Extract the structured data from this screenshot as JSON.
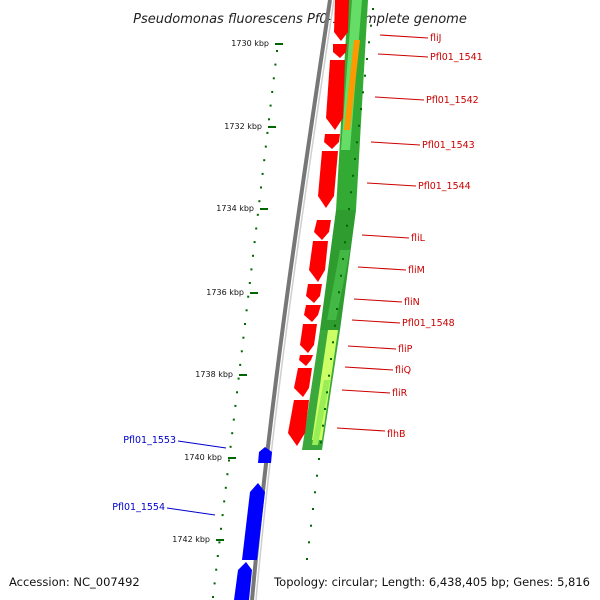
{
  "title": "Pseudomonas fluorescens Pf0-1, complete genome",
  "accession_text": "Accession: NC_007492",
  "summary_text": "Topology: circular; Length: 6,438,405 bp; Genes: 5,816",
  "colors": {
    "forward_cds": "#ff0000",
    "reverse_cds": "#0000ff",
    "forward_label": "#cc0000",
    "reverse_label": "#0000cc",
    "tick": "#006600",
    "backbone": "#888888",
    "gc_high": "#33aa33",
    "gc_mid": "#66dd66",
    "gc_light": "#ccff66",
    "gc_orange": "#ff9900"
  },
  "ticks": [
    {
      "label": "1730 kbp",
      "kbp": 1730
    },
    {
      "label": "1732 kbp",
      "kbp": 1732
    },
    {
      "label": "1734 kbp",
      "kbp": 1734
    },
    {
      "label": "1736 kbp",
      "kbp": 1736
    },
    {
      "label": "1738 kbp",
      "kbp": 1738
    },
    {
      "label": "1740 kbp",
      "kbp": 1740
    },
    {
      "label": "1742 kbp",
      "kbp": 1742
    }
  ],
  "forward_genes": [
    {
      "name": "fliJ"
    },
    {
      "name": "Pfl01_1541"
    },
    {
      "name": "Pfl01_1542"
    },
    {
      "name": "Pfl01_1543"
    },
    {
      "name": "Pfl01_1544"
    },
    {
      "name": "fliL"
    },
    {
      "name": "fliM"
    },
    {
      "name": "fliN"
    },
    {
      "name": "Pfl01_1548"
    },
    {
      "name": "fliP"
    },
    {
      "name": "fliQ"
    },
    {
      "name": "fliR"
    },
    {
      "name": "flhB"
    }
  ],
  "reverse_genes": [
    {
      "name": "Pfl01_1553"
    },
    {
      "name": "Pfl01_1554"
    }
  ]
}
